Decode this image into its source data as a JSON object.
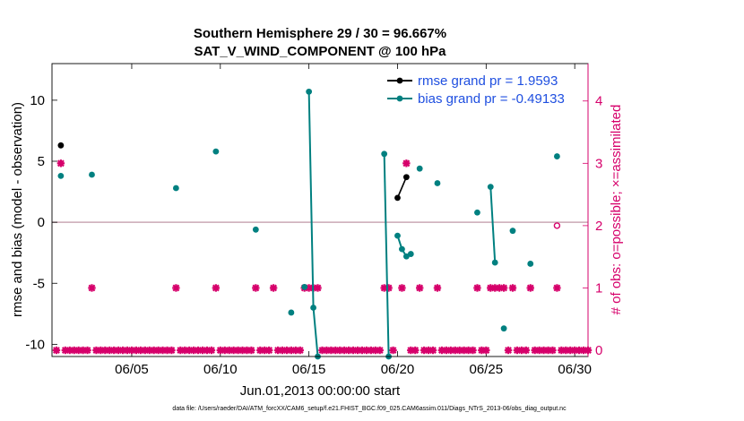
{
  "chart_data": {
    "type": "scatter",
    "title": "Southern Hemisphere 29 / 30 = 96.667%",
    "subtitle": "SAT_V_WIND_COMPONENT @ 100 hPa",
    "xlabel": "Jun.01,2013 00:00:00 start",
    "ylabel": "rmse and bias (model - observation)",
    "y2label": "# of obs: o=possible; ×=assimilated",
    "footer": "data file: /Users/raeder/DAI/ATM_forcXX/CAM6_setup/f.e21.FHIST_BGC.f09_025.CAM6assim.011/Diags_NTrS_2013-06/obs_diag_output.nc",
    "xlim": [
      0.5,
      30.75
    ],
    "ylim": [
      -11,
      13
    ],
    "y2lim": [
      -0.1,
      4.6
    ],
    "xticks": [
      {
        "v": 5,
        "label": "06/05"
      },
      {
        "v": 10,
        "label": "06/10"
      },
      {
        "v": 15,
        "label": "06/15"
      },
      {
        "v": 20,
        "label": "06/20"
      },
      {
        "v": 25,
        "label": "06/25"
      },
      {
        "v": 30,
        "label": "06/30"
      }
    ],
    "yticks": [
      {
        "v": -10,
        "label": "-10"
      },
      {
        "v": -5,
        "label": "-5"
      },
      {
        "v": 0,
        "label": "0"
      },
      {
        "v": 5,
        "label": "5"
      },
      {
        "v": 10,
        "label": "10"
      }
    ],
    "y2ticks": [
      {
        "v": 0,
        "label": "0"
      },
      {
        "v": 1,
        "label": "1"
      },
      {
        "v": 2,
        "label": "2"
      },
      {
        "v": 3,
        "label": "3"
      },
      {
        "v": 4,
        "label": "4"
      }
    ],
    "colors": {
      "rmse": "#000000",
      "bias": "#008080",
      "obs": "#d6006b",
      "zero": "#c9a8b4",
      "legend": "#1f4fe0"
    },
    "series": [
      {
        "name": "rmse grand pr = 1.9593",
        "color": "#000000",
        "points": [
          [
            1.0,
            6.3
          ],
          [
            20.0,
            2.0
          ],
          [
            20.5,
            3.7
          ]
        ]
      },
      {
        "name": "bias grand pr = -0.49133",
        "color": "#008080",
        "points": [
          [
            1.0,
            3.8
          ],
          [
            2.75,
            3.9
          ],
          [
            7.5,
            2.8
          ],
          [
            9.75,
            5.8
          ],
          [
            12.0,
            -0.6
          ],
          [
            14.0,
            -7.4
          ],
          [
            14.75,
            -5.3
          ],
          [
            15.0,
            10.7
          ],
          [
            15.25,
            -7.0
          ],
          [
            15.5,
            -11.0
          ],
          [
            19.25,
            5.6
          ],
          [
            19.5,
            -11.0
          ],
          [
            20.0,
            -1.1
          ],
          [
            20.25,
            -2.2
          ],
          [
            20.5,
            -2.8
          ],
          [
            20.75,
            -2.6
          ],
          [
            21.25,
            4.4
          ],
          [
            22.25,
            3.2
          ],
          [
            24.5,
            0.8
          ],
          [
            25.25,
            2.9
          ],
          [
            25.5,
            -3.3
          ],
          [
            26.0,
            -8.7
          ],
          [
            26.5,
            -0.7
          ],
          [
            27.5,
            -3.4
          ],
          [
            29.0,
            5.4
          ]
        ],
        "lines": [
          [
            [
              15.0,
              10.7
            ],
            [
              15.25,
              -7.0
            ],
            [
              15.5,
              -11.0
            ]
          ],
          [
            [
              19.25,
              5.6
            ],
            [
              19.5,
              -11.0
            ]
          ],
          [
            [
              20.0,
              -1.1
            ],
            [
              20.25,
              -2.2
            ],
            [
              20.5,
              -2.8
            ],
            [
              20.75,
              -2.6
            ]
          ],
          [
            [
              25.25,
              2.9
            ],
            [
              25.5,
              -3.3
            ]
          ]
        ]
      }
    ],
    "obs_assimilated": {
      "name": "# assimilated",
      "color": "#d6006b",
      "points": [
        [
          1.0,
          3
        ],
        [
          20.5,
          3
        ],
        [
          2.75,
          1
        ],
        [
          7.5,
          1
        ],
        [
          9.75,
          1
        ],
        [
          12.0,
          1
        ],
        [
          13.0,
          1
        ],
        [
          14.75,
          1
        ],
        [
          15.0,
          1
        ],
        [
          15.25,
          1
        ],
        [
          15.5,
          1
        ],
        [
          19.25,
          1
        ],
        [
          19.5,
          1
        ],
        [
          20.25,
          1
        ],
        [
          21.25,
          1
        ],
        [
          22.25,
          1
        ],
        [
          24.5,
          1
        ],
        [
          25.25,
          1
        ],
        [
          25.5,
          1
        ],
        [
          25.75,
          1
        ],
        [
          26.0,
          1
        ],
        [
          26.5,
          1
        ],
        [
          27.5,
          1
        ],
        [
          29.0,
          1
        ]
      ],
      "zero_range": [
        0.75,
        30.75
      ],
      "zero_step": 0.25,
      "zero_gaps": [
        1.0,
        2.75,
        7.5,
        9.75,
        12.0,
        13.0,
        14.75,
        15.0,
        15.25,
        15.5,
        19.25,
        19.5,
        20.0,
        20.25,
        20.5,
        21.25,
        22.25,
        24.5,
        25.25,
        25.5,
        25.75,
        26.0,
        26.5,
        27.5,
        29.0
      ]
    },
    "obs_possible": {
      "name": "# possible (only)",
      "color": "#d6006b",
      "points": [
        [
          29.0,
          2
        ]
      ]
    }
  }
}
